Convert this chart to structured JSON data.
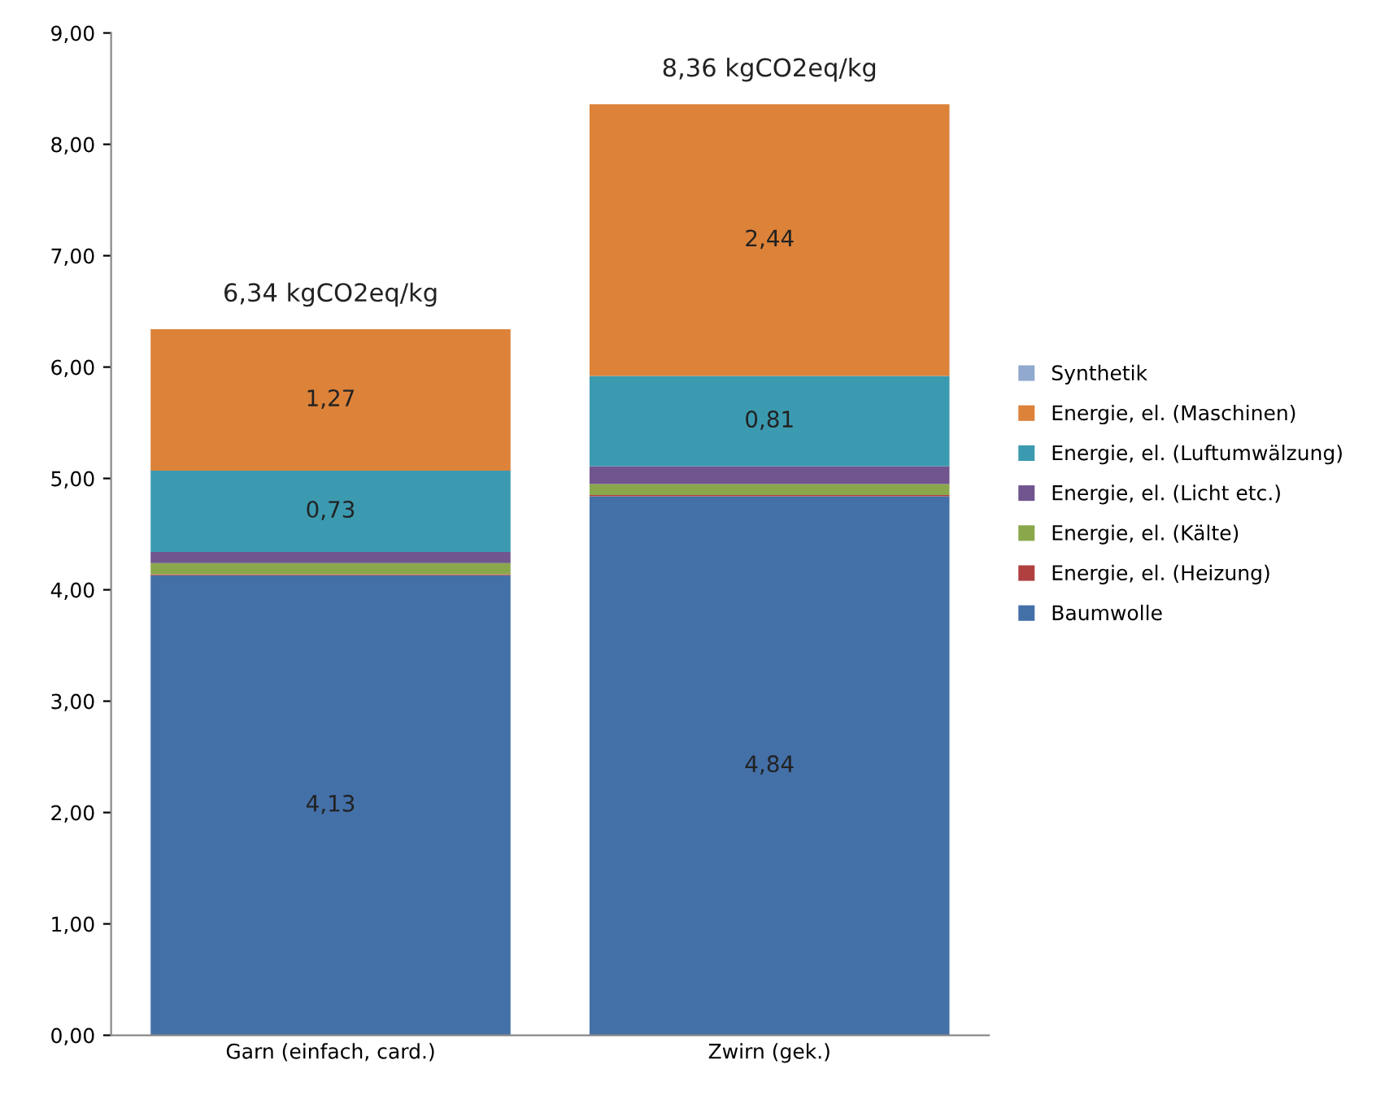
{
  "chart_data": {
    "type": "bar",
    "stacked": true,
    "categories": [
      "Garn (einfach, card.)",
      "Zwirn (gek.)"
    ],
    "series": [
      {
        "name": "Baumwolle",
        "color": "#4470a8",
        "values": [
          4.13,
          4.84
        ],
        "value_labels": [
          "4,13",
          "4,84"
        ]
      },
      {
        "name": "Energie, el. (Heizung)",
        "color": "#b04040",
        "values": [
          0.01,
          0.01
        ],
        "value_labels": [
          null,
          null
        ]
      },
      {
        "name": "Energie, el. (Kälte)",
        "color": "#8aa84b",
        "values": [
          0.1,
          0.1
        ],
        "value_labels": [
          null,
          null
        ]
      },
      {
        "name": "Energie, el. (Licht etc.)",
        "color": "#70558f",
        "values": [
          0.1,
          0.16
        ],
        "value_labels": [
          null,
          null
        ]
      },
      {
        "name": "Energie, el. (Luftumwälzung)",
        "color": "#3b9ab0",
        "values": [
          0.73,
          0.81
        ],
        "value_labels": [
          "0,73",
          "0,81"
        ]
      },
      {
        "name": "Energie, el. (Maschinen)",
        "color": "#dc8239",
        "values": [
          1.27,
          2.44
        ],
        "value_labels": [
          "1,27",
          "2,44"
        ]
      },
      {
        "name": "Synthetik",
        "color": "#91a9cf",
        "values": [
          0,
          0
        ],
        "value_labels": [
          null,
          null
        ]
      }
    ],
    "totals": [
      "6,34 kgCO2eq/kg",
      "8,36 kgCO2eq/kg"
    ],
    "ylim": [
      0,
      9
    ],
    "yticks": [
      {
        "value": 0,
        "label": "0,00"
      },
      {
        "value": 1,
        "label": "1,00"
      },
      {
        "value": 2,
        "label": "2,00"
      },
      {
        "value": 3,
        "label": "3,00"
      },
      {
        "value": 4,
        "label": "4,00"
      },
      {
        "value": 5,
        "label": "5,00"
      },
      {
        "value": 6,
        "label": "6,00"
      },
      {
        "value": 7,
        "label": "7,00"
      },
      {
        "value": 8,
        "label": "8,00"
      },
      {
        "value": 9,
        "label": "9,00"
      }
    ],
    "grid": false,
    "legend": "right"
  }
}
